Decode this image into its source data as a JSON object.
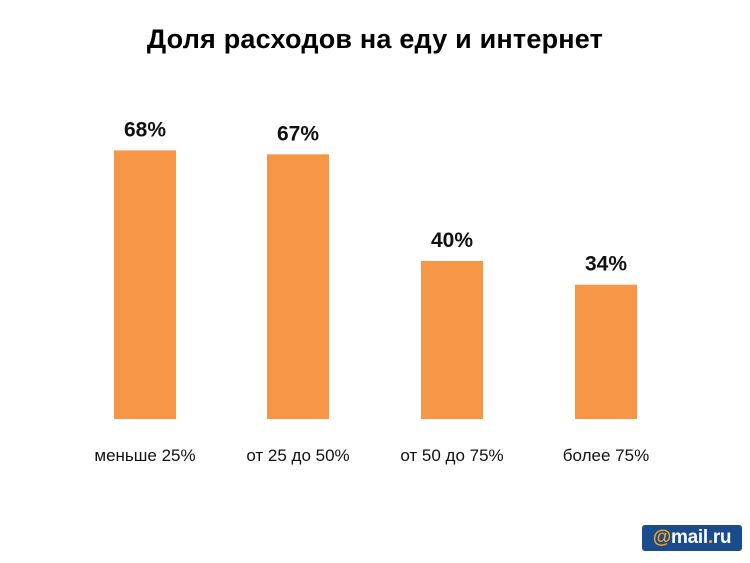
{
  "chart_data": {
    "type": "bar",
    "title": "Доля расходов на еду и интернет",
    "categories": [
      "меньше 25%",
      "от 25 до 50%",
      "от 50 до 75%",
      "более 75%"
    ],
    "values": [
      68,
      67,
      40,
      34
    ],
    "value_labels": [
      "68%",
      "67%",
      "40%",
      "34%"
    ],
    "unit": "%",
    "ylim": [
      0,
      100
    ],
    "grid": false,
    "legend": "none",
    "bar_color": "#F79646"
  },
  "logo": {
    "at": "@",
    "name": "mail",
    "dot": ".",
    "tld": "ru"
  },
  "colors": {
    "bar": "#F79646",
    "logo_bg": "#1A4B8C",
    "logo_accent": "#F7A21B"
  }
}
